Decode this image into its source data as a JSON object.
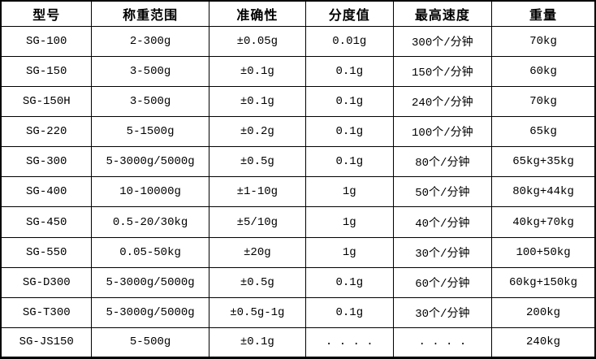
{
  "meta": {
    "description_label": "Weighing scale model specification table",
    "colors": {
      "background": "#ffffff",
      "border": "#000000",
      "text": "#000000"
    }
  },
  "table": {
    "columns": [
      "型号",
      "称重范围",
      "准确性",
      "分度值",
      "最高速度",
      "重量"
    ],
    "rows": [
      [
        "SG-100",
        "2-300g",
        "±0.05g",
        "0.01g",
        "300个/分钟",
        "70kg"
      ],
      [
        "SG-150",
        "3-500g",
        "±0.1g",
        "0.1g",
        "150个/分钟",
        "60kg"
      ],
      [
        "SG-150H",
        "3-500g",
        "±0.1g",
        "0.1g",
        "240个/分钟",
        "70kg"
      ],
      [
        "SG-220",
        "5-1500g",
        "±0.2g",
        "0.1g",
        "100个/分钟",
        "65kg"
      ],
      [
        "SG-300",
        "5-3000g/5000g",
        "±0.5g",
        "0.1g",
        "80个/分钟",
        "65kg+35kg"
      ],
      [
        "SG-400",
        "10-10000g",
        "±1-10g",
        "1g",
        "50个/分钟",
        "80kg+44kg"
      ],
      [
        "SG-450",
        "0.5-20/30kg",
        "±5/10g",
        "1g",
        "40个/分钟",
        "40kg+70kg"
      ],
      [
        "SG-550",
        "0.05-50kg",
        "±20g",
        "1g",
        "30个/分钟",
        "100+50kg"
      ],
      [
        "SG-D300",
        "5-3000g/5000g",
        "±0.5g",
        "0.1g",
        "60个/分钟",
        "60kg+150kg"
      ],
      [
        "SG-T300",
        "5-3000g/5000g",
        "±0.5g-1g",
        "0.1g",
        "30个/分钟",
        "200kg"
      ],
      [
        "SG-JS150",
        "5-500g",
        "±0.1g",
        ". . . .",
        ". . . .",
        "240kg"
      ]
    ]
  }
}
